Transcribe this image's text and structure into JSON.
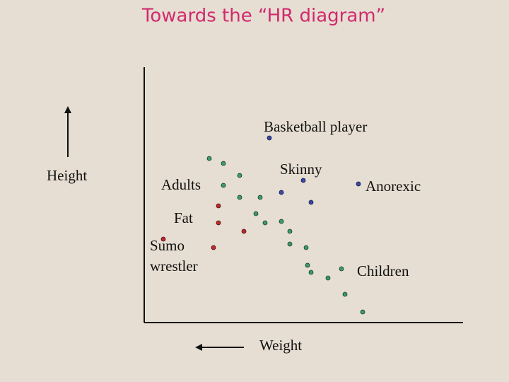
{
  "title": "Towards the “HR diagram”",
  "axes": {
    "y_label": "Height",
    "x_label": "Weight"
  },
  "labels": {
    "basketball": "Basketball player",
    "adults": "Adults",
    "skinny": "Skinny",
    "anorexic": "Anorexic",
    "fat": "Fat",
    "sumo": [
      "Sumo",
      "wrestler"
    ],
    "children": "Children"
  }
}
